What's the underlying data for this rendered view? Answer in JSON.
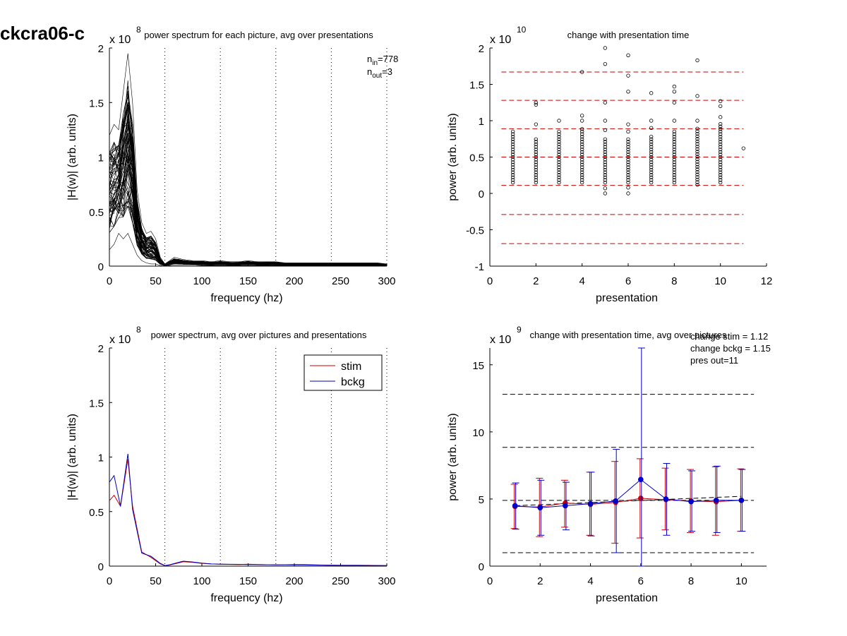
{
  "figure_title": "ckcra06-c",
  "chart_data": [
    {
      "type": "line",
      "title": "power spectrum for each picture, avg over presentations",
      "xlabel": "frequency (hz)",
      "ylabel": "|H(w)| (arb. units)",
      "xlim": [
        0,
        300
      ],
      "ylim": [
        0,
        2
      ],
      "x_ticks": [
        "0",
        "50",
        "100",
        "150",
        "200",
        "250",
        "300"
      ],
      "y_ticks": [
        "0",
        "0.5",
        "1",
        "1.5",
        "2"
      ],
      "y_multiplier": "x 10",
      "y_exponent": "8",
      "vertical_guides": [
        60,
        120,
        180,
        240,
        300
      ],
      "annotations": [
        {
          "base": "n",
          "sub": "in",
          "text": "=778"
        },
        {
          "base": "n",
          "sub": "out",
          "text": "=3"
        }
      ],
      "freq": [
        0,
        5,
        10,
        15,
        20,
        25,
        30,
        35,
        40,
        45,
        50,
        55,
        60,
        65,
        70,
        75,
        80,
        90,
        100,
        110,
        120,
        130,
        140,
        150,
        160,
        170,
        180,
        190,
        200,
        210,
        220,
        230,
        240,
        250,
        260,
        270,
        280,
        290,
        300
      ],
      "envelope_upper": [
        1.2,
        1.3,
        1.25,
        1.6,
        1.95,
        1.5,
        0.7,
        0.4,
        0.3,
        0.32,
        0.25,
        0.08,
        0.02,
        0.05,
        0.08,
        0.07,
        0.06,
        0.05,
        0.05,
        0.04,
        0.05,
        0.04,
        0.04,
        0.05,
        0.04,
        0.04,
        0.04,
        0.03,
        0.03,
        0.03,
        0.03,
        0.03,
        0.03,
        0.03,
        0.03,
        0.03,
        0.03,
        0.03,
        0.02
      ],
      "envelope_lower": [
        0.15,
        0.2,
        0.3,
        0.25,
        0.3,
        0.2,
        0.1,
        0.05,
        0.03,
        0.02,
        0.02,
        0.005,
        0.0,
        0.005,
        0.01,
        0.01,
        0.01,
        0.01,
        0.005,
        0.005,
        0.005,
        0.005,
        0.005,
        0.005,
        0.005,
        0.005,
        0.005,
        0.005,
        0.005,
        0.005,
        0.005,
        0.005,
        0.005,
        0.005,
        0.005,
        0.005,
        0.005,
        0.005,
        0.0
      ],
      "line_color": "#000000"
    },
    {
      "type": "scatter",
      "title": "change with presentation time",
      "xlabel": "presentation",
      "ylabel": "power (arb. units)",
      "xlim": [
        0,
        12
      ],
      "ylim": [
        -1,
        2
      ],
      "x_ticks": [
        "0",
        "2",
        "4",
        "6",
        "8",
        "10",
        "12"
      ],
      "y_ticks": [
        "-1",
        "-0.5",
        "0",
        "0.5",
        "1",
        "1.5",
        "2"
      ],
      "y_multiplier": "x 10",
      "y_exponent": "10",
      "threshold_lines": [
        1.67,
        1.28,
        0.89,
        0.5,
        0.11,
        -0.29,
        -0.69
      ],
      "threshold_color": "#cc0000",
      "point_columns": [
        {
          "x": 1,
          "min": 0.15,
          "max": 0.88,
          "outliers": []
        },
        {
          "x": 2,
          "min": 0.15,
          "max": 0.75,
          "outliers": [
            0.95,
            1.22,
            1.25
          ]
        },
        {
          "x": 3,
          "min": 0.15,
          "max": 0.88,
          "outliers": [
            1.0
          ]
        },
        {
          "x": 4,
          "min": 0.15,
          "max": 0.9,
          "outliers": [
            1.0,
            1.07,
            1.67
          ]
        },
        {
          "x": 5,
          "min": 0.15,
          "max": 0.75,
          "outliers": [
            0.0,
            0.07,
            0.87,
            1.0,
            1.25,
            1.78,
            2.0
          ]
        },
        {
          "x": 6,
          "min": 0.15,
          "max": 0.75,
          "outliers": [
            0.0,
            0.08,
            0.85,
            0.95,
            1.4,
            1.62,
            1.9
          ]
        },
        {
          "x": 7,
          "min": 0.15,
          "max": 0.8,
          "outliers": [
            0.9,
            1.0,
            1.38
          ]
        },
        {
          "x": 8,
          "min": 0.15,
          "max": 0.88,
          "outliers": [
            1.0,
            1.25,
            1.4,
            1.47
          ]
        },
        {
          "x": 9,
          "min": 0.12,
          "max": 0.9,
          "outliers": [
            1.0,
            1.34,
            1.83
          ]
        },
        {
          "x": 10,
          "min": 0.15,
          "max": 0.98,
          "outliers": [
            1.05,
            1.2,
            1.27
          ]
        },
        {
          "x": 11,
          "min": 0.62,
          "max": 0.62,
          "outliers": []
        }
      ]
    },
    {
      "type": "line",
      "title": "power spectrum, avg over pictures and presentations",
      "xlabel": "frequency (hz)",
      "ylabel": "|H(w)| (arb. units)",
      "xlim": [
        0,
        300
      ],
      "ylim": [
        0,
        2
      ],
      "x_ticks": [
        "0",
        "50",
        "100",
        "150",
        "200",
        "250",
        "300"
      ],
      "y_ticks": [
        "0",
        "0.5",
        "1",
        "1.5",
        "2"
      ],
      "y_multiplier": "x 10",
      "y_exponent": "8",
      "vertical_guides": [
        60,
        120,
        180,
        240,
        300
      ],
      "legend": "top-right",
      "x": [
        0,
        5,
        12,
        20,
        25,
        35,
        45,
        55,
        60,
        65,
        75,
        80,
        90,
        100,
        110,
        120,
        130,
        140,
        150,
        160,
        170,
        180,
        190,
        200,
        210,
        220,
        230,
        240,
        250,
        260,
        270,
        280,
        290,
        300
      ],
      "series": [
        {
          "name": "stim",
          "color": "#cc0000",
          "values": [
            0.6,
            0.65,
            0.55,
            0.98,
            0.55,
            0.13,
            0.08,
            0.02,
            0.005,
            0.01,
            0.03,
            0.04,
            0.035,
            0.025,
            0.02,
            0.018,
            0.016,
            0.015,
            0.018,
            0.014,
            0.013,
            0.012,
            0.013,
            0.014,
            0.015,
            0.012,
            0.01,
            0.008,
            0.007,
            0.007,
            0.007,
            0.007,
            0.006,
            0.005
          ]
        },
        {
          "name": "bckg",
          "color": "#0000bb",
          "values": [
            0.77,
            0.83,
            0.55,
            1.03,
            0.52,
            0.12,
            0.09,
            0.025,
            0.005,
            0.012,
            0.035,
            0.045,
            0.038,
            0.028,
            0.02,
            0.018,
            0.017,
            0.016,
            0.015,
            0.014,
            0.013,
            0.012,
            0.012,
            0.011,
            0.011,
            0.01,
            0.009,
            0.008,
            0.007,
            0.007,
            0.007,
            0.006,
            0.006,
            0.005
          ]
        }
      ]
    },
    {
      "type": "line",
      "title": "change with presentation time, avg over pictures",
      "xlabel": "presentation",
      "ylabel": "power (arb. units)",
      "xlim": [
        0,
        11
      ],
      "ylim": [
        0,
        16.25
      ],
      "x_ticks": [
        "0",
        "2",
        "4",
        "6",
        "8",
        "10"
      ],
      "x_tick_values": [
        0,
        2,
        4,
        6,
        8,
        10
      ],
      "y_ticks": [
        "0",
        "5",
        "10",
        "15"
      ],
      "y_tick_values": [
        0,
        5,
        10,
        15
      ],
      "y_multiplier": "x 10",
      "y_exponent": "9",
      "annotations": [
        "change stim = 1.12",
        "change bckg = 1.15",
        "pres out=11"
      ],
      "threshold_lines": [
        12.8,
        8.85,
        4.9,
        1.0
      ],
      "threshold_color": "#000000",
      "x": [
        1,
        2,
        3,
        4,
        5,
        6,
        7,
        8,
        9,
        10
      ],
      "series": [
        {
          "name": "stim",
          "color": "#cc0000",
          "values": [
            4.45,
            4.4,
            4.7,
            4.6,
            4.75,
            5.05,
            4.95,
            4.85,
            4.8,
            4.9
          ],
          "err_low": [
            2.8,
            2.2,
            2.9,
            2.3,
            1.7,
            2.1,
            2.7,
            2.5,
            2.3,
            2.6
          ],
          "err_high": [
            6.1,
            6.55,
            6.4,
            7.0,
            7.8,
            8.0,
            7.3,
            7.2,
            7.4,
            7.25
          ]
        },
        {
          "name": "bckg",
          "color": "#0000cc",
          "values": [
            4.5,
            4.35,
            4.5,
            4.65,
            4.85,
            6.45,
            5.0,
            4.8,
            4.9,
            4.9
          ],
          "err_low": [
            2.75,
            2.3,
            2.7,
            2.25,
            1.0,
            0.0,
            2.3,
            2.6,
            2.5,
            2.6
          ],
          "err_high": [
            6.2,
            6.4,
            6.25,
            7.0,
            8.7,
            16.25,
            7.65,
            7.1,
            7.45,
            7.2
          ]
        }
      ],
      "fit_line": {
        "x": [
          1,
          10
        ],
        "values": [
          4.5,
          5.2
        ],
        "color": "#000000"
      }
    }
  ]
}
